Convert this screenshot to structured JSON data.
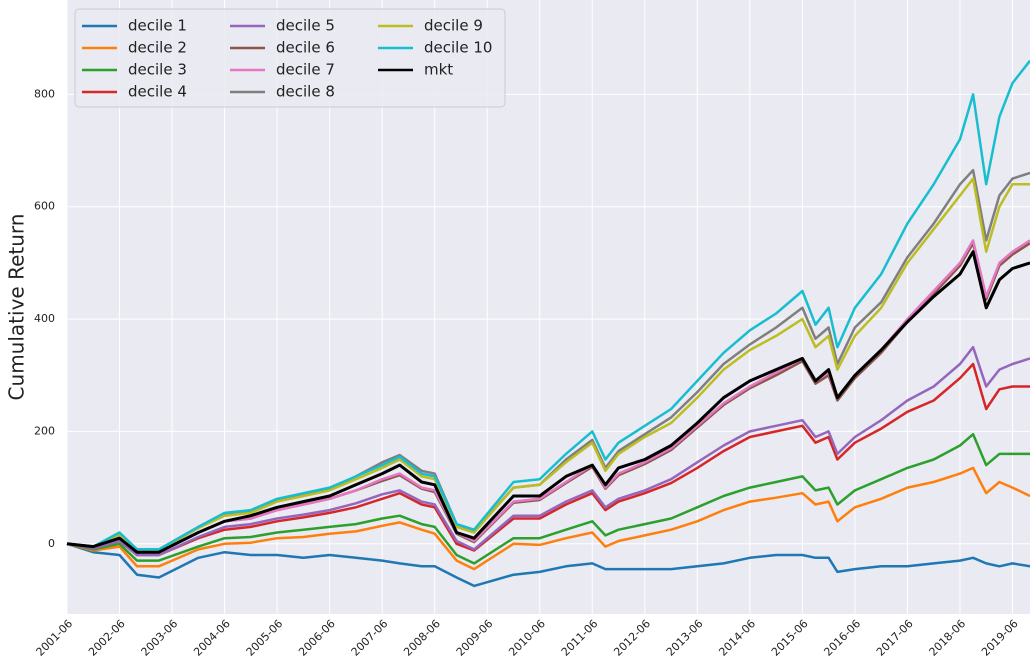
{
  "chart_data": {
    "type": "line",
    "ylabel": "Cumulative Return",
    "x": [
      "2001-06",
      "2001-12",
      "2002-06",
      "2002-10",
      "2003-03",
      "2003-12",
      "2004-06",
      "2004-12",
      "2005-06",
      "2005-12",
      "2006-06",
      "2006-12",
      "2007-06",
      "2007-10",
      "2008-03",
      "2008-06",
      "2008-11",
      "2009-03",
      "2009-12",
      "2010-06",
      "2010-12",
      "2011-06",
      "2011-09",
      "2011-12",
      "2012-06",
      "2012-12",
      "2013-06",
      "2013-12",
      "2014-06",
      "2014-12",
      "2015-06",
      "2015-09",
      "2015-12",
      "2016-02",
      "2016-06",
      "2016-12",
      "2017-06",
      "2017-12",
      "2018-06",
      "2018-09",
      "2018-12",
      "2019-03",
      "2019-06",
      "2019-10"
    ],
    "xlim": [
      "2001-06",
      "2019-10"
    ],
    "xticks": [
      "2001-06",
      "2002-06",
      "2003-06",
      "2004-06",
      "2005-06",
      "2006-06",
      "2007-06",
      "2008-06",
      "2009-06",
      "2010-06",
      "2011-06",
      "2012-06",
      "2013-06",
      "2014-06",
      "2015-06",
      "2016-06",
      "2017-06",
      "2018-06",
      "2019-06"
    ],
    "ylim": [
      -125,
      968
    ],
    "yticks": [
      0,
      200,
      400,
      600,
      800
    ],
    "grid": true,
    "legend": "upper left",
    "series": [
      {
        "name": "decile 1",
        "color": "#1f77b4",
        "values": [
          0,
          -15,
          -20,
          -55,
          -60,
          -25,
          -15,
          -20,
          -20,
          -25,
          -20,
          -25,
          -30,
          -35,
          -40,
          -40,
          -60,
          -75,
          -55,
          -50,
          -40,
          -35,
          -45,
          -45,
          -45,
          -45,
          -40,
          -35,
          -25,
          -20,
          -20,
          -25,
          -25,
          -50,
          -45,
          -40,
          -40,
          -35,
          -30,
          -25,
          -35,
          -40,
          -35,
          -40
        ]
      },
      {
        "name": "decile 2",
        "color": "#ff7f0e",
        "values": [
          0,
          -12,
          -5,
          -40,
          -40,
          -10,
          0,
          2,
          10,
          12,
          18,
          22,
          32,
          38,
          25,
          18,
          -30,
          -45,
          0,
          -2,
          10,
          20,
          -5,
          5,
          15,
          25,
          40,
          60,
          75,
          82,
          90,
          70,
          75,
          40,
          65,
          80,
          100,
          110,
          125,
          135,
          90,
          110,
          100,
          85
        ]
      },
      {
        "name": "decile 3",
        "color": "#2ca02c",
        "values": [
          0,
          -10,
          0,
          -30,
          -30,
          -5,
          10,
          12,
          20,
          25,
          30,
          35,
          45,
          50,
          35,
          30,
          -20,
          -35,
          10,
          10,
          25,
          40,
          15,
          25,
          35,
          45,
          65,
          85,
          100,
          110,
          120,
          95,
          100,
          70,
          95,
          115,
          135,
          150,
          175,
          195,
          140,
          160,
          160,
          160
        ]
      },
      {
        "name": "decile 4",
        "color": "#d62728",
        "values": [
          0,
          -8,
          5,
          -20,
          -20,
          10,
          25,
          30,
          40,
          47,
          55,
          65,
          80,
          90,
          70,
          65,
          0,
          -12,
          45,
          45,
          70,
          90,
          60,
          75,
          90,
          108,
          135,
          165,
          190,
          200,
          210,
          180,
          190,
          150,
          180,
          205,
          235,
          255,
          295,
          320,
          240,
          275,
          280,
          280
        ]
      },
      {
        "name": "decile 5",
        "color": "#9467bd",
        "values": [
          0,
          -8,
          5,
          -20,
          -20,
          12,
          30,
          35,
          45,
          52,
          60,
          72,
          88,
          95,
          75,
          70,
          5,
          -10,
          50,
          50,
          75,
          95,
          65,
          80,
          95,
          115,
          145,
          175,
          200,
          210,
          220,
          190,
          200,
          160,
          190,
          220,
          255,
          280,
          320,
          350,
          280,
          310,
          320,
          330
        ]
      },
      {
        "name": "decile 6",
        "color": "#8c564b",
        "values": [
          0,
          -5,
          10,
          -15,
          -15,
          20,
          40,
          45,
          60,
          70,
          80,
          95,
          112,
          122,
          98,
          92,
          18,
          3,
          73,
          78,
          108,
          137,
          98,
          122,
          142,
          167,
          207,
          247,
          277,
          300,
          325,
          285,
          300,
          255,
          295,
          340,
          395,
          445,
          495,
          535,
          435,
          495,
          515,
          535
        ]
      },
      {
        "name": "decile 7",
        "color": "#e377c2",
        "values": [
          0,
          -5,
          10,
          -15,
          -15,
          20,
          40,
          45,
          60,
          70,
          80,
          95,
          115,
          125,
          100,
          95,
          20,
          5,
          75,
          80,
          110,
          140,
          100,
          125,
          145,
          170,
          210,
          250,
          280,
          305,
          330,
          290,
          305,
          260,
          300,
          345,
          400,
          450,
          500,
          540,
          440,
          500,
          520,
          540
        ]
      },
      {
        "name": "decile 8",
        "color": "#7f7f7f",
        "values": [
          0,
          -5,
          15,
          -10,
          -10,
          30,
          52,
          58,
          78,
          88,
          98,
          120,
          145,
          158,
          130,
          125,
          35,
          22,
          100,
          105,
          150,
          185,
          135,
          165,
          195,
          225,
          270,
          320,
          355,
          385,
          420,
          365,
          385,
          320,
          385,
          430,
          510,
          570,
          640,
          665,
          540,
          620,
          650,
          660
        ]
      },
      {
        "name": "decile 9",
        "color": "#bcbd22",
        "values": [
          0,
          -5,
          15,
          -12,
          -12,
          28,
          50,
          55,
          75,
          85,
          95,
          115,
          135,
          150,
          120,
          115,
          30,
          20,
          100,
          105,
          145,
          180,
          130,
          160,
          190,
          215,
          260,
          310,
          345,
          370,
          400,
          350,
          370,
          310,
          370,
          420,
          500,
          560,
          620,
          650,
          520,
          600,
          640,
          640
        ]
      },
      {
        "name": "decile 10",
        "color": "#17becf",
        "values": [
          0,
          -5,
          20,
          -10,
          -10,
          30,
          55,
          60,
          80,
          90,
          100,
          120,
          140,
          155,
          125,
          120,
          35,
          25,
          110,
          115,
          160,
          200,
          150,
          180,
          210,
          240,
          290,
          340,
          380,
          410,
          450,
          390,
          420,
          350,
          420,
          480,
          570,
          640,
          720,
          800,
          640,
          760,
          820,
          860
        ]
      },
      {
        "name": "mkt",
        "color": "#000000",
        "values": [
          0,
          -5,
          10,
          -15,
          -15,
          20,
          40,
          50,
          65,
          75,
          85,
          105,
          125,
          140,
          110,
          105,
          20,
          10,
          85,
          85,
          120,
          140,
          105,
          135,
          150,
          175,
          215,
          260,
          290,
          310,
          330,
          290,
          310,
          260,
          300,
          345,
          395,
          440,
          480,
          520,
          420,
          470,
          490,
          500
        ]
      }
    ]
  }
}
